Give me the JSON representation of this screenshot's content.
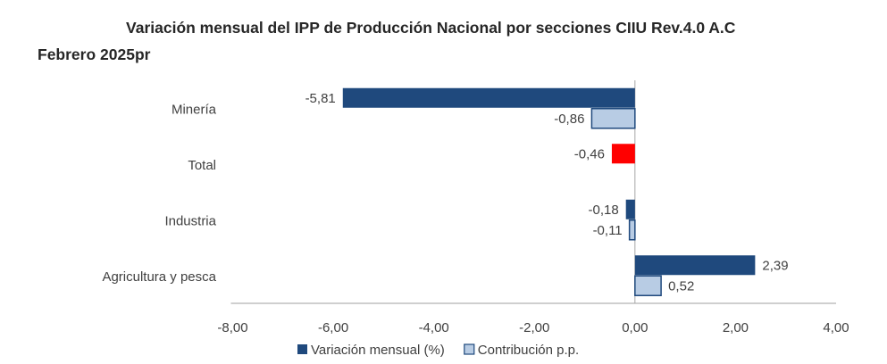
{
  "chart_data": {
    "type": "bar",
    "orientation": "horizontal",
    "title": "Variación mensual del IPP de Producción Nacional por secciones CIIU Rev.4.0 A.C",
    "subtitle": "Febrero 2025pr",
    "categories": [
      "Minería",
      "Total",
      "Industria",
      "Agricultura y pesca"
    ],
    "series": [
      {
        "name": "Variación mensual (%)",
        "values": [
          -5.81,
          -0.46,
          -0.18,
          2.39
        ],
        "color": "#1f497d",
        "labels": [
          "-5,81",
          "-0,46",
          "-0,18",
          "2,39"
        ],
        "highlight": {
          "Total": "#ff0000"
        }
      },
      {
        "name": "Contribución p.p.",
        "values": [
          -0.86,
          null,
          -0.11,
          0.52
        ],
        "color": "#b8cce4",
        "border": "#1f497d",
        "labels": [
          "-0,86",
          null,
          "-0,11",
          "0,52"
        ]
      }
    ],
    "xlim": [
      -8,
      4
    ],
    "xticks": [
      -8,
      -6,
      -4,
      -2,
      0,
      2,
      4
    ],
    "xtick_labels": [
      "-8,00",
      "-6,00",
      "-4,00",
      "-2,00",
      "0,00",
      "2,00",
      "4,00"
    ],
    "grid": false,
    "legend": "bottom"
  }
}
